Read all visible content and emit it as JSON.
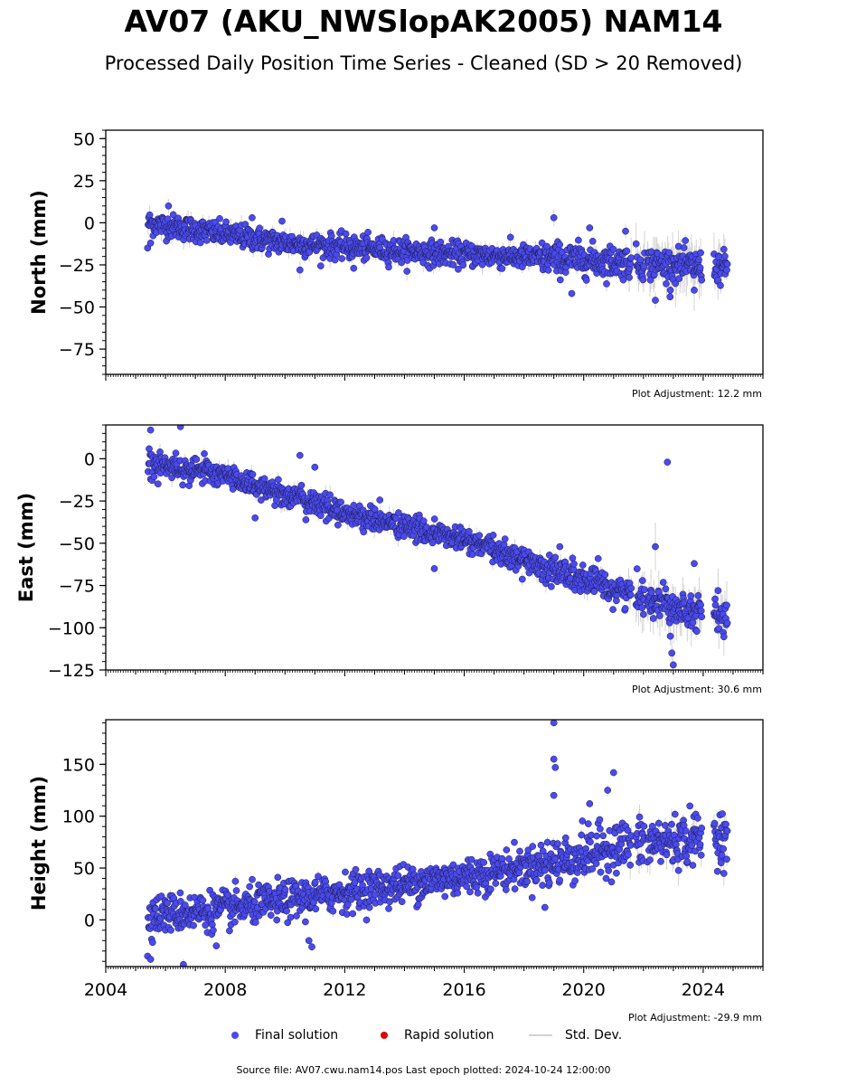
{
  "header": {
    "title": "AV07 (AKU_NWSlopAK2005) NAM14",
    "subtitle": "Processed Daily Position Time Series - Cleaned (SD > 20 Removed)"
  },
  "chart_data": [
    {
      "type": "scatter",
      "ylabel": "North (mm)",
      "ylim": [
        -90,
        55
      ],
      "yticks": [
        50,
        25,
        0,
        -25,
        -50,
        -75
      ],
      "yticklabels": [
        "50",
        "25",
        "0",
        "−25",
        "−50",
        "−75"
      ],
      "xlim": [
        2004.0,
        2026.0
      ],
      "adjustment": "Plot Adjustment: 12.2 mm",
      "trend": [
        [
          2005.4,
          0
        ],
        [
          2010,
          -12
        ],
        [
          2015,
          -18
        ],
        [
          2020,
          -22
        ],
        [
          2024.9,
          -27
        ]
      ],
      "scatter_sd": 3.5,
      "outliers": [
        [
          2005.4,
          -15
        ],
        [
          2005.5,
          -12
        ],
        [
          2006.1,
          10
        ],
        [
          2008.9,
          3
        ],
        [
          2009.9,
          1
        ],
        [
          2010.5,
          -28
        ],
        [
          2012.3,
          -27
        ],
        [
          2015.0,
          -3
        ],
        [
          2019.0,
          3
        ],
        [
          2019.6,
          -42
        ],
        [
          2020.2,
          -3
        ],
        [
          2021.4,
          -5
        ],
        [
          2022.4,
          -46
        ],
        [
          2022.9,
          -40
        ],
        [
          2023.7,
          -40
        ]
      ],
      "color": "#4a4af0"
    },
    {
      "type": "scatter",
      "ylabel": "East (mm)",
      "ylim": [
        -125,
        20
      ],
      "yticks": [
        0,
        -25,
        -50,
        -75,
        -100,
        -125
      ],
      "yticklabels": [
        "0",
        "−25",
        "−50",
        "−75",
        "−100",
        "−125"
      ],
      "xlim": [
        2004.0,
        2026.0
      ],
      "adjustment": "Plot Adjustment: 30.6 mm",
      "trend": [
        [
          2005.4,
          -2
        ],
        [
          2008,
          -10
        ],
        [
          2012,
          -32
        ],
        [
          2016,
          -48
        ],
        [
          2020,
          -72
        ],
        [
          2022,
          -82
        ],
        [
          2024.9,
          -95
        ]
      ],
      "scatter_sd": 3.5,
      "outliers": [
        [
          2005.5,
          17
        ],
        [
          2006.5,
          19
        ],
        [
          2007.3,
          3
        ],
        [
          2009.0,
          -35
        ],
        [
          2010.5,
          2
        ],
        [
          2011.0,
          -5
        ],
        [
          2015.0,
          -65
        ],
        [
          2019.2,
          -52
        ],
        [
          2022.4,
          -52
        ],
        [
          2022.8,
          -2
        ],
        [
          2022.9,
          -105
        ],
        [
          2022.95,
          -115
        ],
        [
          2023.0,
          -122
        ],
        [
          2023.7,
          -62
        ],
        [
          2024.5,
          -78
        ]
      ],
      "color": "#4a4af0"
    },
    {
      "type": "scatter",
      "ylabel": "Height (mm)",
      "ylim": [
        -45,
        193
      ],
      "yticks": [
        150,
        100,
        50,
        0
      ],
      "yticklabels": [
        "150",
        "100",
        "50",
        "0"
      ],
      "xlim": [
        2004.0,
        2026.0
      ],
      "adjustment": "Plot Adjustment: -29.9 mm",
      "trend": [
        [
          2005.4,
          5
        ],
        [
          2008,
          10
        ],
        [
          2012,
          27
        ],
        [
          2016,
          42
        ],
        [
          2019,
          55
        ],
        [
          2021,
          70
        ],
        [
          2024.9,
          82
        ]
      ],
      "scatter_sd": 9,
      "outliers": [
        [
          2005.4,
          -35
        ],
        [
          2005.5,
          -38
        ],
        [
          2006.6,
          -43
        ],
        [
          2007.7,
          -25
        ],
        [
          2010.8,
          -20
        ],
        [
          2010.9,
          -26
        ],
        [
          2019.0,
          190
        ],
        [
          2019.0,
          155
        ],
        [
          2019.05,
          147
        ],
        [
          2019.0,
          120
        ],
        [
          2020.2,
          112
        ],
        [
          2020.8,
          125
        ],
        [
          2021.0,
          142
        ],
        [
          2018.7,
          12
        ],
        [
          2024.6,
          55
        ]
      ],
      "color": "#4a4af0"
    }
  ],
  "x_axis": {
    "ticks": [
      2004,
      2008,
      2012,
      2016,
      2020,
      2024
    ],
    "ticklabels": [
      "2004",
      "2008",
      "2012",
      "2016",
      "2020",
      "2024"
    ]
  },
  "legend": {
    "final": "Final solution",
    "rapid": "Rapid solution",
    "sd": "Std. Dev.",
    "final_color": "#4a4af0",
    "rapid_color": "#e00000",
    "sd_color": "#d3d3d3"
  },
  "footer": "Source file: AV07.cwu.nam14.pos  Last epoch plotted: 2024-10-24 12:00:00"
}
